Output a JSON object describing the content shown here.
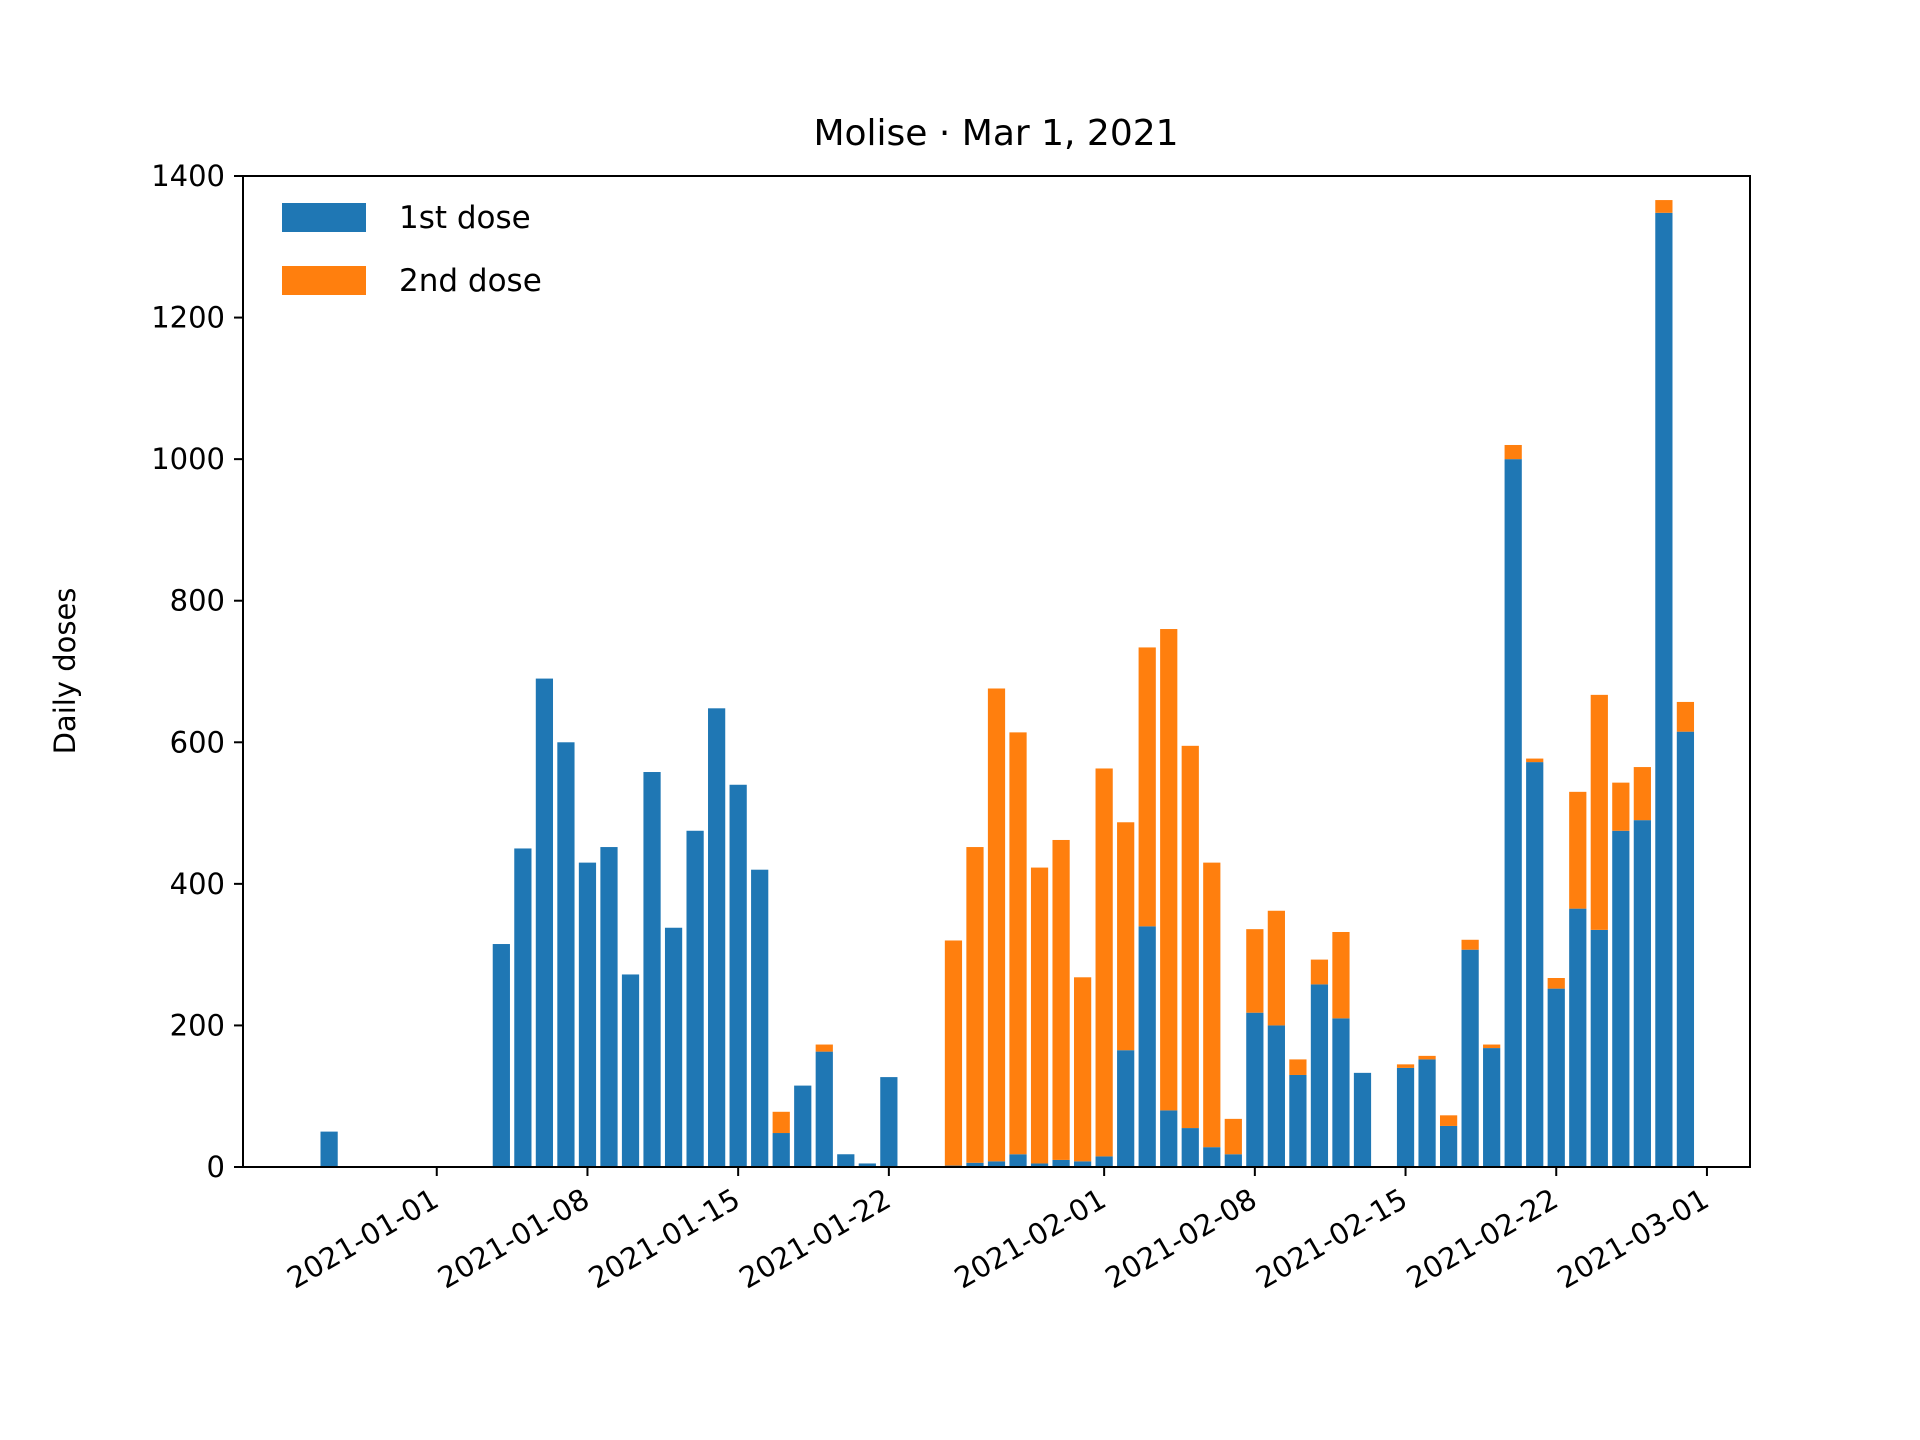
{
  "chart_data": {
    "type": "bar",
    "stacked": true,
    "title": "Molise · Mar 1, 2021",
    "xlabel": "",
    "ylabel": "Daily doses",
    "ylim": [
      0,
      1400
    ],
    "yticks": [
      0,
      200,
      400,
      600,
      800,
      1000,
      1200,
      1400
    ],
    "xticks": [
      "2021-01-01",
      "2021-01-08",
      "2021-01-15",
      "2021-01-22",
      "2021-02-01",
      "2021-02-08",
      "2021-02-15",
      "2021-02-22",
      "2021-03-01"
    ],
    "xlim": [
      "2020-12-23",
      "2021-03-03"
    ],
    "grid": false,
    "legend_position": "top-left",
    "x": [
      "2020-12-27",
      "2020-12-28",
      "2020-12-29",
      "2020-12-30",
      "2020-12-31",
      "2021-01-01",
      "2021-01-02",
      "2021-01-03",
      "2021-01-04",
      "2021-01-05",
      "2021-01-06",
      "2021-01-07",
      "2021-01-08",
      "2021-01-09",
      "2021-01-10",
      "2021-01-11",
      "2021-01-12",
      "2021-01-13",
      "2021-01-14",
      "2021-01-15",
      "2021-01-16",
      "2021-01-17",
      "2021-01-18",
      "2021-01-19",
      "2021-01-20",
      "2021-01-21",
      "2021-01-22",
      "2021-01-23",
      "2021-01-24",
      "2021-01-25",
      "2021-01-26",
      "2021-01-27",
      "2021-01-28",
      "2021-01-29",
      "2021-01-30",
      "2021-01-31",
      "2021-02-01",
      "2021-02-02",
      "2021-02-03",
      "2021-02-04",
      "2021-02-05",
      "2021-02-06",
      "2021-02-07",
      "2021-02-08",
      "2021-02-09",
      "2021-02-10",
      "2021-02-11",
      "2021-02-12",
      "2021-02-13",
      "2021-02-14",
      "2021-02-15",
      "2021-02-16",
      "2021-02-17",
      "2021-02-18",
      "2021-02-19",
      "2021-02-20",
      "2021-02-21",
      "2021-02-22",
      "2021-02-23",
      "2021-02-24",
      "2021-02-25",
      "2021-02-26",
      "2021-02-27",
      "2021-02-28"
    ],
    "series": [
      {
        "name": "1st dose",
        "color": "#1f77b4",
        "values": [
          50,
          0,
          0,
          0,
          0,
          0,
          0,
          0,
          315,
          450,
          690,
          600,
          430,
          452,
          272,
          558,
          338,
          475,
          648,
          540,
          420,
          48,
          115,
          163,
          18,
          5,
          127,
          0,
          0,
          2,
          6,
          8,
          18,
          5,
          10,
          8,
          15,
          165,
          340,
          80,
          55,
          28,
          18,
          218,
          200,
          130,
          258,
          210,
          133,
          0,
          140,
          152,
          58,
          307,
          168,
          1000,
          572,
          252,
          365,
          335,
          475,
          490,
          1348,
          615
        ],
        "highlight_color": "#1f77b4"
      },
      {
        "name": "2nd dose",
        "color": "#ff7f0e",
        "values": [
          0,
          0,
          0,
          0,
          0,
          0,
          0,
          0,
          0,
          0,
          0,
          0,
          0,
          0,
          0,
          0,
          0,
          0,
          0,
          0,
          0,
          30,
          0,
          10,
          0,
          0,
          0,
          0,
          0,
          318,
          446,
          668,
          596,
          418,
          452,
          260,
          548,
          322,
          394,
          680,
          540,
          402,
          50,
          118,
          162,
          22,
          35,
          122,
          0,
          0,
          5,
          5,
          15,
          14,
          5,
          20,
          5,
          15,
          165,
          332,
          68,
          75,
          18,
          42
        ]
      }
    ]
  }
}
